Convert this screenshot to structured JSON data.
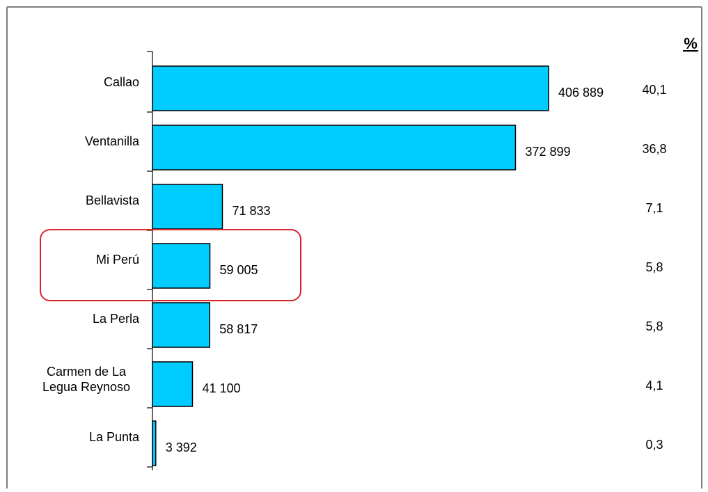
{
  "chart_data": {
    "type": "bar",
    "orientation": "horizontal",
    "categories": [
      "Callao",
      "Ventanilla",
      "Bellavista",
      "Mi Perú",
      "La Perla",
      "Carmen de La Legua Reynoso",
      "La Punta"
    ],
    "category_lines": [
      [
        "Callao"
      ],
      [
        "Ventanilla"
      ],
      [
        "Bellavista"
      ],
      [
        "Mi Perú"
      ],
      [
        "La Perla"
      ],
      [
        "Carmen de La",
        "Legua Reynoso"
      ],
      [
        "La Punta"
      ]
    ],
    "values": [
      406889,
      372899,
      71833,
      59005,
      58817,
      41100,
      3392
    ],
    "value_labels": [
      "406 889",
      "372 899",
      "71 833",
      "59 005",
      "58 817",
      "41 100",
      "3 392"
    ],
    "percent_header": "%",
    "percent_labels": [
      "40,1",
      "36,8",
      "7,1",
      "5,8",
      "5,8",
      "4,1",
      "0,3"
    ],
    "highlighted_category": "Mi Perú",
    "xlim": [
      0,
      406889
    ],
    "grid": false,
    "legend": "none",
    "colors": {
      "bar": "#00CCFF",
      "bar_stroke": "#000000",
      "highlight": "#D9262C",
      "frame": "#7f7f7f"
    }
  }
}
